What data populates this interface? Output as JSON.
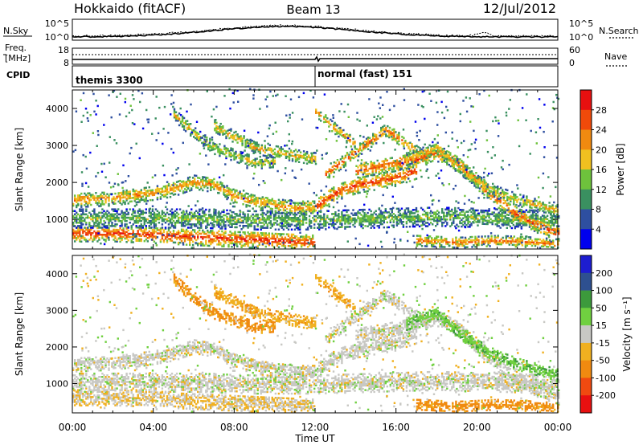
{
  "header": {
    "title": "Hokkaido (fitACF)",
    "beam": "Beam 13",
    "date": "12/Jul/2012"
  },
  "top_panels": {
    "nsky": {
      "label": "N.Sky",
      "ticks": [
        "10^5",
        "10^0"
      ]
    },
    "nsearch": {
      "label": "N.Search",
      "ticks": [
        "10^5",
        "10^0"
      ]
    },
    "freq": {
      "label_line1": "Freq.",
      "label_line2": "[MHz]",
      "ticks": [
        "18",
        "8"
      ]
    },
    "nave": {
      "label": "Nave",
      "ticks": [
        "60",
        "0"
      ]
    },
    "cpid": {
      "label": "CPID",
      "segments": [
        {
          "label": "themis 3300",
          "start_hour": 0,
          "end_hour": 12
        },
        {
          "label": "normal (fast) 151",
          "start_hour": 12,
          "end_hour": 24
        }
      ]
    }
  },
  "colors": {
    "power": [
      "#0000ee",
      "#2e4fa0",
      "#3a9060",
      "#6ec23c",
      "#f0c020",
      "#f08a10",
      "#f04a0a",
      "#e81010"
    ],
    "velocity": [
      "#e81010",
      "#f04a10",
      "#f08a10",
      "#f0b020",
      "#c8c8c4",
      "#70d040",
      "#3c9a3c",
      "#2e5090",
      "#1d1dd0"
    ]
  },
  "chart_data": [
    {
      "type": "heatmap",
      "name": "power",
      "ylabel": "Slant Range [km]",
      "yticks": [
        "4000",
        "3000",
        "2000",
        "1000"
      ],
      "ylim": [
        200,
        4500
      ],
      "xlim": [
        0,
        24
      ],
      "colorbar": {
        "label": "Power [dB]",
        "ticks": [
          "28",
          "24",
          "20",
          "16",
          "12",
          "8",
          "4"
        ],
        "range": [
          0,
          32
        ]
      }
    },
    {
      "type": "heatmap",
      "name": "velocity",
      "ylabel": "Slant Range [km]",
      "yticks": [
        "4000",
        "3000",
        "2000",
        "1000"
      ],
      "ylim": [
        200,
        4500
      ],
      "xlim": [
        0,
        24
      ],
      "xlabel": "Time UT",
      "xticks": [
        "00:00",
        "04:00",
        "08:00",
        "12:00",
        "16:00",
        "20:00",
        "00:00"
      ],
      "colorbar": {
        "label": "Velocity [m s⁻¹]",
        "ticks": [
          "200",
          "100",
          "50",
          "15",
          "-15",
          "-50",
          "-100",
          "-200"
        ]
      }
    }
  ],
  "bands": [
    {
      "t": [
        0,
        2,
        4,
        6,
        8,
        10,
        12
      ],
      "r": [
        600,
        600,
        550,
        500,
        450,
        400,
        350
      ],
      "w": 220,
      "p": 28,
      "v": -15
    },
    {
      "t": [
        0,
        3,
        6,
        9,
        12,
        15,
        18,
        21,
        24
      ],
      "r": [
        1000,
        1000,
        1000,
        950,
        950,
        1000,
        1050,
        1000,
        950
      ],
      "w": 250,
      "p": 14,
      "v": 0
    },
    {
      "t": [
        0,
        2,
        4,
        5,
        6,
        7,
        8,
        9,
        10,
        11,
        12
      ],
      "r": [
        1500,
        1550,
        1700,
        1800,
        2000,
        1900,
        1600,
        1450,
        1350,
        1300,
        1300
      ],
      "w": 200,
      "p": 22,
      "v": 0
    },
    {
      "t": [
        5,
        6,
        7,
        8,
        9,
        10
      ],
      "r": [
        3800,
        3300,
        2900,
        2700,
        2500,
        2550
      ],
      "w": 160,
      "p": 18,
      "v": -60
    },
    {
      "t": [
        7,
        8,
        9,
        10,
        11,
        12
      ],
      "r": [
        3500,
        3200,
        2900,
        2800,
        2700,
        2600
      ],
      "w": 160,
      "p": 20,
      "v": -40
    },
    {
      "t": [
        12,
        13,
        14,
        15,
        16,
        17
      ],
      "r": [
        1300,
        1700,
        1900,
        2000,
        2100,
        2300
      ],
      "w": 220,
      "p": 27,
      "v": 0
    },
    {
      "t": [
        12.5,
        13.5,
        14.5,
        15.5,
        16.5,
        17.5
      ],
      "r": [
        2200,
        2600,
        3000,
        3400,
        3000,
        2600
      ],
      "w": 160,
      "p": 25,
      "v": 0
    },
    {
      "t": [
        14,
        15,
        16,
        17,
        18,
        19,
        20,
        21,
        22,
        23,
        24
      ],
      "r": [
        2300,
        2400,
        2500,
        2600,
        2800,
        2500,
        2000,
        1500,
        1100,
        800,
        600
      ],
      "w": 200,
      "p": 26,
      "v": 0
    },
    {
      "t": [
        16.5,
        18,
        19,
        20,
        21,
        22,
        24
      ],
      "r": [
        2600,
        2900,
        2400,
        2000,
        1700,
        1500,
        1200
      ],
      "w": 160,
      "p": 20,
      "v": 40
    },
    {
      "t": [
        12,
        13,
        14
      ],
      "r": [
        3900,
        3400,
        3000
      ],
      "w": 140,
      "p": 22,
      "v": -40
    },
    {
      "t": [
        17,
        19,
        21,
        23,
        24
      ],
      "r": [
        400,
        350,
        400,
        350,
        300
      ],
      "w": 140,
      "p": 24,
      "v": -60
    }
  ]
}
